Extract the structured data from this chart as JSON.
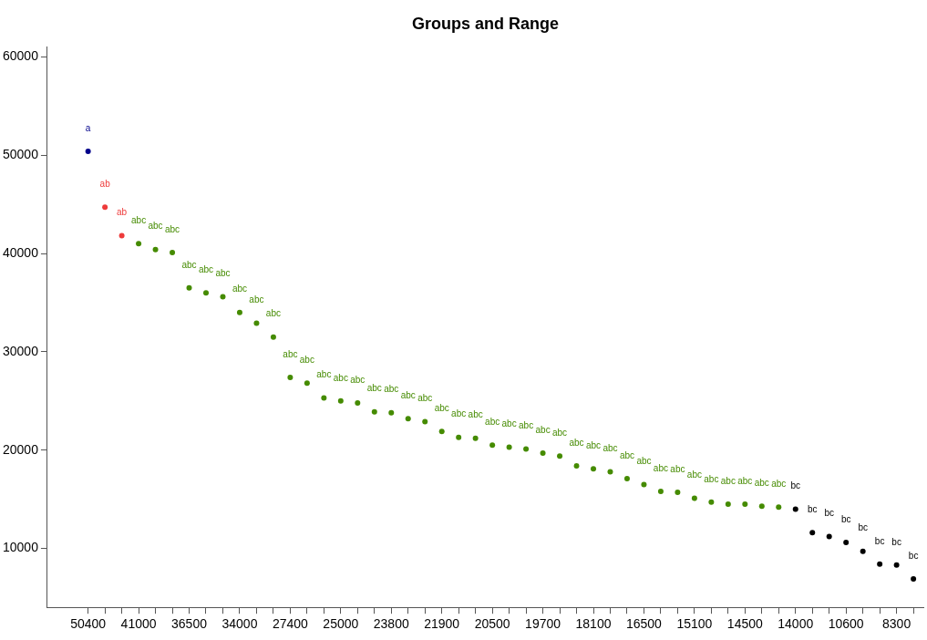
{
  "chart_data": {
    "type": "scatter",
    "title": "Groups and Range",
    "marker": "circle",
    "categories": [
      "50400",
      null,
      null,
      "41000",
      null,
      null,
      "36500",
      null,
      null,
      "34000",
      null,
      null,
      "27400",
      null,
      null,
      "25000",
      null,
      null,
      "23800",
      null,
      null,
      "21900",
      null,
      null,
      "20500",
      null,
      null,
      "19700",
      null,
      null,
      "18100",
      null,
      null,
      "16500",
      null,
      null,
      "15100",
      null,
      null,
      "14500",
      null,
      null,
      "14000",
      null,
      null,
      "10600",
      null,
      null,
      "8300",
      null
    ],
    "values": [
      50400,
      44700,
      41800,
      41000,
      40400,
      40100,
      36500,
      36000,
      35600,
      34000,
      32900,
      31500,
      27400,
      26800,
      25300,
      25000,
      24800,
      23900,
      23800,
      23200,
      22900,
      21900,
      21300,
      21200,
      20500,
      20300,
      20100,
      19700,
      19400,
      18400,
      18100,
      17800,
      17100,
      16500,
      15800,
      15700,
      15100,
      14700,
      14500,
      14500,
      14300,
      14200,
      14000,
      11600,
      11200,
      10600,
      9700,
      8400,
      8300,
      6900
    ],
    "colors": [
      "#00008b",
      "#ee3b3b",
      "#ee3b3b",
      "#458b00",
      "#458b00",
      "#458b00",
      "#458b00",
      "#458b00",
      "#458b00",
      "#458b00",
      "#458b00",
      "#458b00",
      "#458b00",
      "#458b00",
      "#458b00",
      "#458b00",
      "#458b00",
      "#458b00",
      "#458b00",
      "#458b00",
      "#458b00",
      "#458b00",
      "#458b00",
      "#458b00",
      "#458b00",
      "#458b00",
      "#458b00",
      "#458b00",
      "#458b00",
      "#458b00",
      "#458b00",
      "#458b00",
      "#458b00",
      "#458b00",
      "#458b00",
      "#458b00",
      "#458b00",
      "#458b00",
      "#458b00",
      "#458b00",
      "#458b00",
      "#458b00",
      "#000000",
      "#000000",
      "#000000",
      "#000000",
      "#000000",
      "#000000",
      "#000000",
      "#000000"
    ],
    "value_labels": [
      "a",
      "ab",
      "ab",
      "abc",
      "abc",
      "abc",
      "abc",
      "abc",
      "abc",
      "abc",
      "abc",
      "abc",
      "abc",
      "abc",
      "abc",
      "abc",
      "abc",
      "abc",
      "abc",
      "abc",
      "abc",
      "abc",
      "abc",
      "abc",
      "abc",
      "abc",
      "abc",
      "abc",
      "abc",
      "abc",
      "abc",
      "abc",
      "abc",
      "abc",
      "abc",
      "abc",
      "abc",
      "abc",
      "abc",
      "abc",
      "abc",
      "abc",
      "bc",
      "bc",
      "bc",
      "bc",
      "bc",
      "bc",
      "bc",
      "bc"
    ],
    "ylim": [
      4000,
      61000
    ],
    "yticks": [
      10000,
      20000,
      30000,
      40000,
      50000,
      60000
    ]
  }
}
